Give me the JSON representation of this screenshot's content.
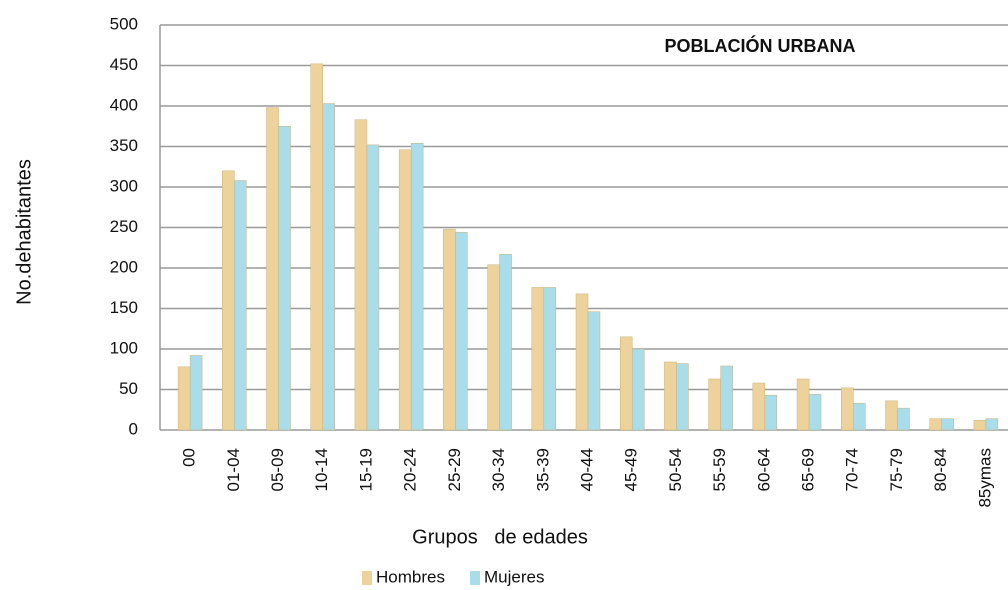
{
  "chart_data": {
    "type": "bar",
    "title": "POBLACIÓN URBANA",
    "x_label": "Grupos   de edades",
    "y_label": "No.dehabitantes",
    "categories": [
      "00",
      "01-04",
      "05-09",
      "10-14",
      "15-19",
      "20-24",
      "25-29",
      "30-34",
      "35-39",
      "40-44",
      "45-49",
      "50-54",
      "55-59",
      "60-64",
      "65-69",
      "70-74",
      "75-79",
      "80-84",
      "85ymas"
    ],
    "series": [
      {
        "name": "Hombres",
        "color": "#edd29c",
        "values": [
          78,
          320,
          398,
          452,
          383,
          346,
          248,
          204,
          176,
          168,
          115,
          84,
          63,
          58,
          63,
          52,
          36,
          14,
          12
        ]
      },
      {
        "name": "Mujeres",
        "color": "#a8dde9",
        "values": [
          92,
          308,
          375,
          403,
          352,
          354,
          244,
          217,
          176,
          146,
          100,
          82,
          79,
          43,
          44,
          33,
          27,
          14,
          14
        ]
      }
    ],
    "ylim": [
      0,
      500
    ],
    "yticks": [
      0,
      50,
      100,
      150,
      200,
      250,
      300,
      350,
      400,
      450,
      500
    ],
    "grid": true
  }
}
